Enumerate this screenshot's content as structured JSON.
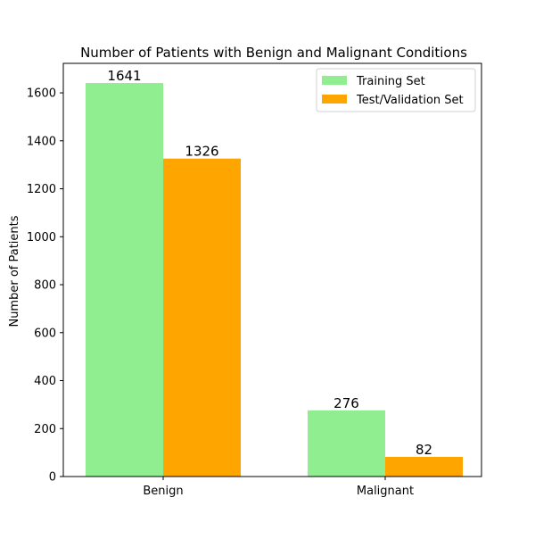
{
  "chart_data": {
    "type": "bar",
    "title": "Number of Patients with Benign and Malignant Conditions",
    "xlabel": "",
    "ylabel": "Number of Patients",
    "categories": [
      "Benign",
      "Malignant"
    ],
    "series": [
      {
        "name": "Training Set",
        "values": [
          1641,
          276
        ],
        "color": "#90ee90"
      },
      {
        "name": "Test/Validation Set",
        "values": [
          1326,
          82
        ],
        "color": "#ffa500"
      }
    ],
    "ylim": [
      0,
      1723
    ],
    "yticks": [
      0,
      200,
      400,
      600,
      800,
      1000,
      1200,
      1400,
      1600
    ],
    "grid": false,
    "legend_position": "top-right",
    "data_labels": true
  }
}
